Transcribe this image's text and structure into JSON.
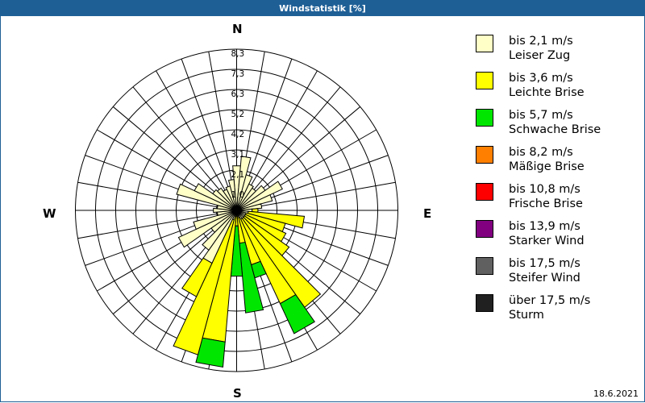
{
  "window": {
    "title": "Windstatistik [%]"
  },
  "compass": {
    "n": "N",
    "e": "E",
    "s": "S",
    "w": "W"
  },
  "footer": {
    "date": "18.6.2021"
  },
  "legend": [
    {
      "range": "bis 2,1 m/s",
      "name": "Leiser Zug",
      "color": "#ffffc8"
    },
    {
      "range": "bis 3,6 m/s",
      "name": "Leichte Brise",
      "color": "#ffff00"
    },
    {
      "range": "bis 5,7 m/s",
      "name": "Schwache Brise",
      "color": "#00e600"
    },
    {
      "range": "bis 8,2 m/s",
      "name": "Mäßige Brise",
      "color": "#ff8000"
    },
    {
      "range": "bis 10,8 m/s",
      "name": "Frische Brise",
      "color": "#ff0000"
    },
    {
      "range": "bis 13,9 m/s",
      "name": "Starker Wind",
      "color": "#800080"
    },
    {
      "range": "bis 17,5 m/s",
      "name": "Steifer Wind",
      "color": "#606060"
    },
    {
      "range": "über 17,5 m/s",
      "name": "Sturm",
      "color": "#202020"
    }
  ],
  "chart_data": {
    "type": "wind-rose",
    "title": "Windstatistik [%]",
    "unit": "%",
    "rings": [
      "1,0",
      "2,1",
      "3,1",
      "4,2",
      "5,2",
      "6,3",
      "7,3",
      "8,3"
    ],
    "rmax": 8.3,
    "sector_width_deg": 10,
    "series_names": [
      "Leiser Zug",
      "Leichte Brise",
      "Schwache Brise",
      "Mäßige Brise",
      "Frische Brise",
      "Starker Wind",
      "Steifer Wind",
      "Sturm"
    ],
    "sectors": [
      {
        "dir": 0,
        "values": [
          2.3,
          0,
          0
        ]
      },
      {
        "dir": 10,
        "values": [
          2.8,
          0,
          0
        ]
      },
      {
        "dir": 20,
        "values": [
          1.9,
          0,
          0
        ]
      },
      {
        "dir": 30,
        "values": [
          1.5,
          0,
          0
        ]
      },
      {
        "dir": 40,
        "values": [
          1.4,
          0,
          0
        ]
      },
      {
        "dir": 50,
        "values": [
          1.8,
          0,
          0
        ]
      },
      {
        "dir": 60,
        "values": [
          2.6,
          0,
          0
        ]
      },
      {
        "dir": 70,
        "values": [
          1.9,
          0,
          0
        ]
      },
      {
        "dir": 80,
        "values": [
          1.3,
          0,
          0
        ]
      },
      {
        "dir": 90,
        "values": [
          0.8,
          0.3,
          0
        ]
      },
      {
        "dir": 100,
        "values": [
          0.6,
          2.9,
          0
        ]
      },
      {
        "dir": 110,
        "values": [
          0.5,
          2.1,
          0
        ]
      },
      {
        "dir": 120,
        "values": [
          0.5,
          2.3,
          0
        ]
      },
      {
        "dir": 130,
        "values": [
          0.5,
          2.8,
          0
        ]
      },
      {
        "dir": 140,
        "values": [
          0.5,
          5.6,
          0
        ]
      },
      {
        "dir": 150,
        "values": [
          0.5,
          4.8,
          1.7
        ]
      },
      {
        "dir": 160,
        "values": [
          0.4,
          2.5,
          0.7
        ]
      },
      {
        "dir": 170,
        "values": [
          0.3,
          1.4,
          3.6
        ]
      },
      {
        "dir": 180,
        "values": [
          0.3,
          0.5,
          2.6
        ]
      },
      {
        "dir": 190,
        "values": [
          0.3,
          6.5,
          1.3
        ]
      },
      {
        "dir": 200,
        "values": [
          0.5,
          7.2,
          0
        ]
      },
      {
        "dir": 210,
        "values": [
          3.0,
          1.9,
          0
        ]
      },
      {
        "dir": 220,
        "values": [
          2.5,
          0,
          0
        ]
      },
      {
        "dir": 230,
        "values": [
          1.6,
          0,
          0
        ]
      },
      {
        "dir": 240,
        "values": [
          3.3,
          0,
          0
        ]
      },
      {
        "dir": 250,
        "values": [
          2.3,
          0,
          0
        ]
      },
      {
        "dir": 260,
        "values": [
          1.0,
          0,
          0
        ]
      },
      {
        "dir": 270,
        "values": [
          1.2,
          0,
          0
        ]
      },
      {
        "dir": 280,
        "values": [
          1.0,
          0,
          0
        ]
      },
      {
        "dir": 290,
        "values": [
          3.2,
          0,
          0
        ]
      },
      {
        "dir": 300,
        "values": [
          2.4,
          0,
          0
        ]
      },
      {
        "dir": 310,
        "values": [
          1.5,
          0,
          0
        ]
      },
      {
        "dir": 320,
        "values": [
          1.4,
          0,
          0
        ]
      },
      {
        "dir": 330,
        "values": [
          1.2,
          0,
          0
        ]
      },
      {
        "dir": 340,
        "values": [
          1.3,
          0,
          0
        ]
      },
      {
        "dir": 350,
        "values": [
          1.6,
          0,
          0
        ]
      }
    ]
  }
}
